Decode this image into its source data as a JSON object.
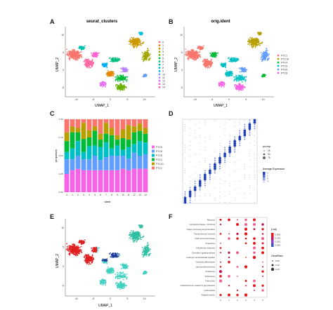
{
  "figure": {
    "panels": {
      "A": {
        "letter": "A",
        "title": "seurat_clusters",
        "xlabel": "UMAP_1",
        "ylabel": "UMAP_2"
      },
      "B": {
        "letter": "B",
        "title": "orig.ident",
        "xlabel": "UMAP_1",
        "ylabel": "UMAP_2"
      },
      "C": {
        "letter": "C",
        "xlabel": "ident",
        "ylabel": "proportion"
      },
      "D": {
        "letter": "D",
        "legend_pct_title": "pct.exp",
        "legend_avg_title": "Average Expression"
      },
      "E": {
        "letter": "E",
        "xlabel": "UMAP_1",
        "ylabel": "UMAP_2"
      },
      "F": {
        "letter": "F",
        "legend_p_title": "p.adj",
        "legend_gene_title": "GeneRatio"
      }
    }
  },
  "chart_data": [
    {
      "panel": "A",
      "type": "scatter",
      "title": "seurat_clusters",
      "xlabel": "UMAP_1",
      "ylabel": "UMAP_2",
      "xticks": [
        "-10",
        "-5",
        "0",
        "5",
        "10"
      ],
      "yticks": [
        "10",
        "5",
        "0",
        "-5"
      ],
      "xlim": [
        -13,
        12
      ],
      "ylim": [
        -9,
        13
      ],
      "legend_position": "right",
      "legend": [
        "0",
        "1",
        "2",
        "3",
        "4",
        "5",
        "6",
        "7",
        "8",
        "9",
        "10",
        "11",
        "12",
        "13",
        "14"
      ],
      "colors": [
        "#f8766d",
        "#e58700",
        "#c99800",
        "#a3a500",
        "#6bb100",
        "#00ba38",
        "#00bf7d",
        "#00c0af",
        "#00bcd8",
        "#00b0f6",
        "#619cff",
        "#b983ff",
        "#e76bf3",
        "#fd61d1",
        "#ff67a4"
      ]
    },
    {
      "panel": "B",
      "type": "scatter",
      "title": "orig.ident",
      "xlabel": "UMAP_1",
      "ylabel": "UMAP_2",
      "xticks": [
        "-10",
        "-5",
        "0",
        "5",
        "10"
      ],
      "yticks": [
        "10",
        "5",
        "0",
        "-5"
      ],
      "xlim": [
        -13,
        12
      ],
      "ylim": [
        -9,
        13
      ],
      "legend_position": "right",
      "legend": [
        "PTC1",
        "PTC10",
        "PTC4",
        "PTC5",
        "PTC6",
        "PTC8"
      ],
      "colors": [
        "#f8766d",
        "#b79f00",
        "#00ba38",
        "#00bfc4",
        "#619cff",
        "#f564e3"
      ]
    },
    {
      "panel": "C",
      "type": "bar",
      "stacked": true,
      "xlabel": "ident",
      "ylabel": "proportion",
      "ylim": [
        0,
        1
      ],
      "yticks": [
        "0.00",
        "0.25",
        "0.50",
        "0.75",
        "1.00"
      ],
      "categories": [
        "0",
        "1",
        "2",
        "3",
        "4",
        "5",
        "6",
        "7",
        "8",
        "9",
        "10",
        "11",
        "12",
        "13",
        "14"
      ],
      "legend_position": "right",
      "series": [
        {
          "name": "PTC1",
          "color": "#f8766d",
          "values": [
            0.18,
            0.1,
            0.12,
            0.05,
            0.15,
            0.1,
            0.2,
            0.05,
            0.12,
            0.22,
            0.14,
            0.08,
            0.1,
            0.06,
            0.12
          ]
        },
        {
          "name": "PTC10",
          "color": "#b79f00",
          "values": [
            0.12,
            0.08,
            0.06,
            0.22,
            0.1,
            0.06,
            0.08,
            0.15,
            0.1,
            0.06,
            0.12,
            0.2,
            0.08,
            0.1,
            0.08
          ]
        },
        {
          "name": "PTC4",
          "color": "#00ba38",
          "values": [
            0.15,
            0.22,
            0.12,
            0.18,
            0.12,
            0.2,
            0.1,
            0.12,
            0.18,
            0.08,
            0.16,
            0.1,
            0.16,
            0.14,
            0.12
          ]
        },
        {
          "name": "PTC5",
          "color": "#00bfc4",
          "values": [
            0.1,
            0.15,
            0.2,
            0.1,
            0.18,
            0.14,
            0.18,
            0.2,
            0.1,
            0.14,
            0.08,
            0.16,
            0.12,
            0.2,
            0.16
          ]
        },
        {
          "name": "PTC6",
          "color": "#619cff",
          "values": [
            0.2,
            0.15,
            0.18,
            0.15,
            0.15,
            0.2,
            0.14,
            0.18,
            0.2,
            0.2,
            0.18,
            0.16,
            0.22,
            0.18,
            0.2
          ]
        },
        {
          "name": "PTC8",
          "color": "#f564e3",
          "values": [
            0.25,
            0.3,
            0.32,
            0.3,
            0.3,
            0.3,
            0.3,
            0.3,
            0.3,
            0.3,
            0.32,
            0.3,
            0.32,
            0.32,
            0.32
          ]
        }
      ]
    },
    {
      "panel": "D",
      "type": "scatter",
      "subtype": "dotplot",
      "legend_pct_title": "pct.exp",
      "legend_pct_values": [
        "25",
        "50",
        "75"
      ],
      "legend_avg_title": "Average Expression",
      "legend_avg_values": [
        "2",
        "1",
        "0",
        "-1"
      ],
      "clusters": 15,
      "genes": 40,
      "note": "diagonal cluster-specific marker genes"
    },
    {
      "panel": "E",
      "type": "scatter",
      "xlabel": "UMAP_1",
      "ylabel": "UMAP_2",
      "xticks": [
        "-10",
        "-5",
        "0",
        "5",
        "10"
      ],
      "yticks": [
        "10",
        "5",
        "0",
        "-5"
      ],
      "xlim": [
        -13,
        12
      ],
      "ylim": [
        -9,
        13
      ],
      "annotations": [
        {
          "label": "Thyrocytes",
          "color": "#e02020"
        },
        {
          "label": "Myeloid cells",
          "color": "#2fbfa0"
        },
        {
          "label": "B cells",
          "color": "#1e3f9e"
        },
        {
          "label": "T & NK cells",
          "color": "#40d0c0"
        }
      ]
    },
    {
      "panel": "F",
      "type": "scatter",
      "subtype": "dotplot",
      "legend_p_title": "p.adj",
      "legend_p_values": [
        "0.005",
        "0.010",
        "0.015",
        "0.020"
      ],
      "legend_gene_title": "GeneRatio",
      "legend_gene_values": [
        "0.05",
        "0.10",
        "0.15"
      ],
      "terms": [
        "Ribosome",
        "Coronavirus disease - COVID-19",
        "Antigen processing and presentation",
        "Thyroid hormone synthesis",
        "Graft-versus-host disease",
        "Phagosome",
        "Cell adhesion molecules",
        "Chemokine signaling pathway",
        "Leukocyte transendothelial migration",
        "Osteoclast differentiation",
        "Lipid and atherosclerosis",
        "Proteasome",
        "Spliceosome",
        "Tuberculosis",
        "Intestinal immune network for IgA production",
        "Leishmaniasis",
        "Allograft rejection"
      ],
      "groups": [
        "0",
        "1",
        "2",
        "3",
        "4",
        "5"
      ]
    }
  ]
}
